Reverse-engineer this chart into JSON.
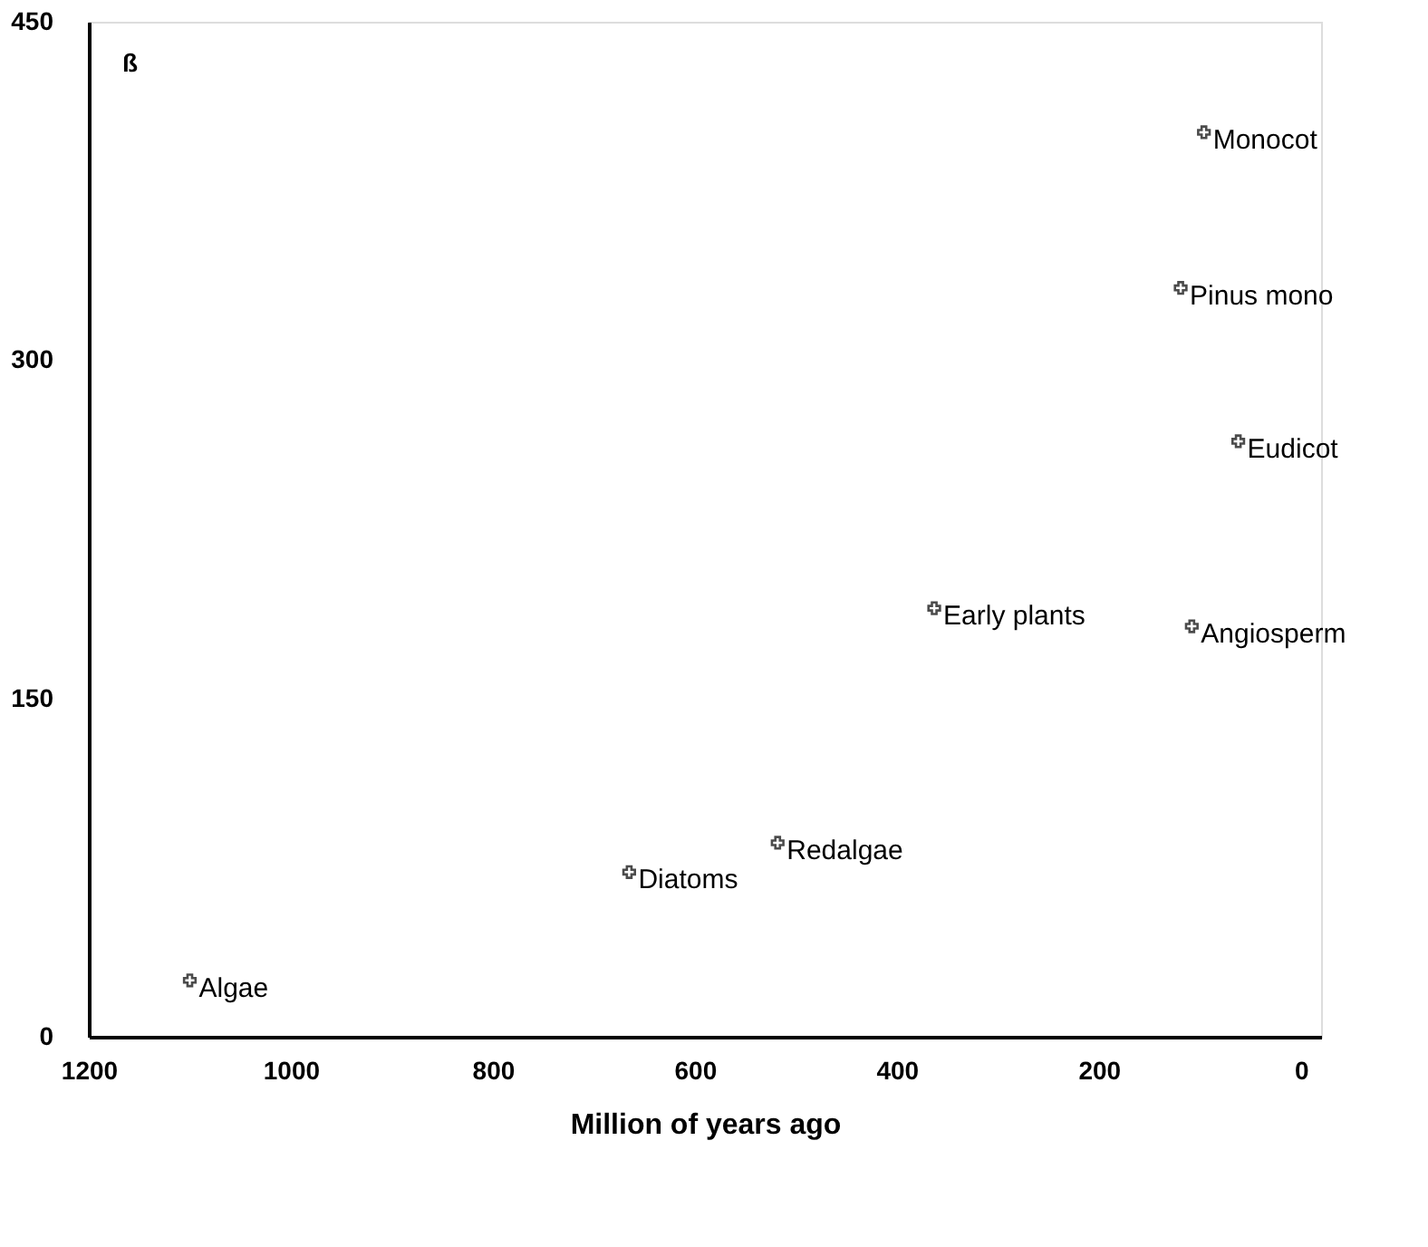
{
  "chart_data": {
    "type": "scatter",
    "xlabel": "Million of years ago",
    "ylabel": "ß",
    "xlim": [
      1200,
      -20
    ],
    "xticks": [
      1200,
      1000,
      800,
      600,
      400,
      200,
      0
    ],
    "ylim": [
      0,
      450
    ],
    "yticks": [
      0,
      150,
      300,
      450
    ],
    "grid": false,
    "marker": "cross",
    "series": [
      {
        "color": "#000000",
        "x": [
          1100,
          665,
          518,
          363,
          108,
          62,
          119,
          96
        ],
        "values": [
          25,
          73,
          86,
          190,
          182,
          264,
          332,
          401
        ]
      }
    ],
    "annotations": [
      {
        "text": "Algae",
        "x": 1100,
        "y": 25
      },
      {
        "text": "Diatoms",
        "x": 665,
        "y": 73
      },
      {
        "text": "Redalgae",
        "x": 518,
        "y": 86
      },
      {
        "text": "Early plants",
        "x": 363,
        "y": 190
      },
      {
        "text": "Angiosperm",
        "x": 108,
        "y": 182
      },
      {
        "text": "Eudicot",
        "x": 62,
        "y": 264
      },
      {
        "text": "Pinus mono",
        "x": 119,
        "y": 332
      },
      {
        "text": "Monocot",
        "x": 96,
        "y": 401
      }
    ]
  }
}
